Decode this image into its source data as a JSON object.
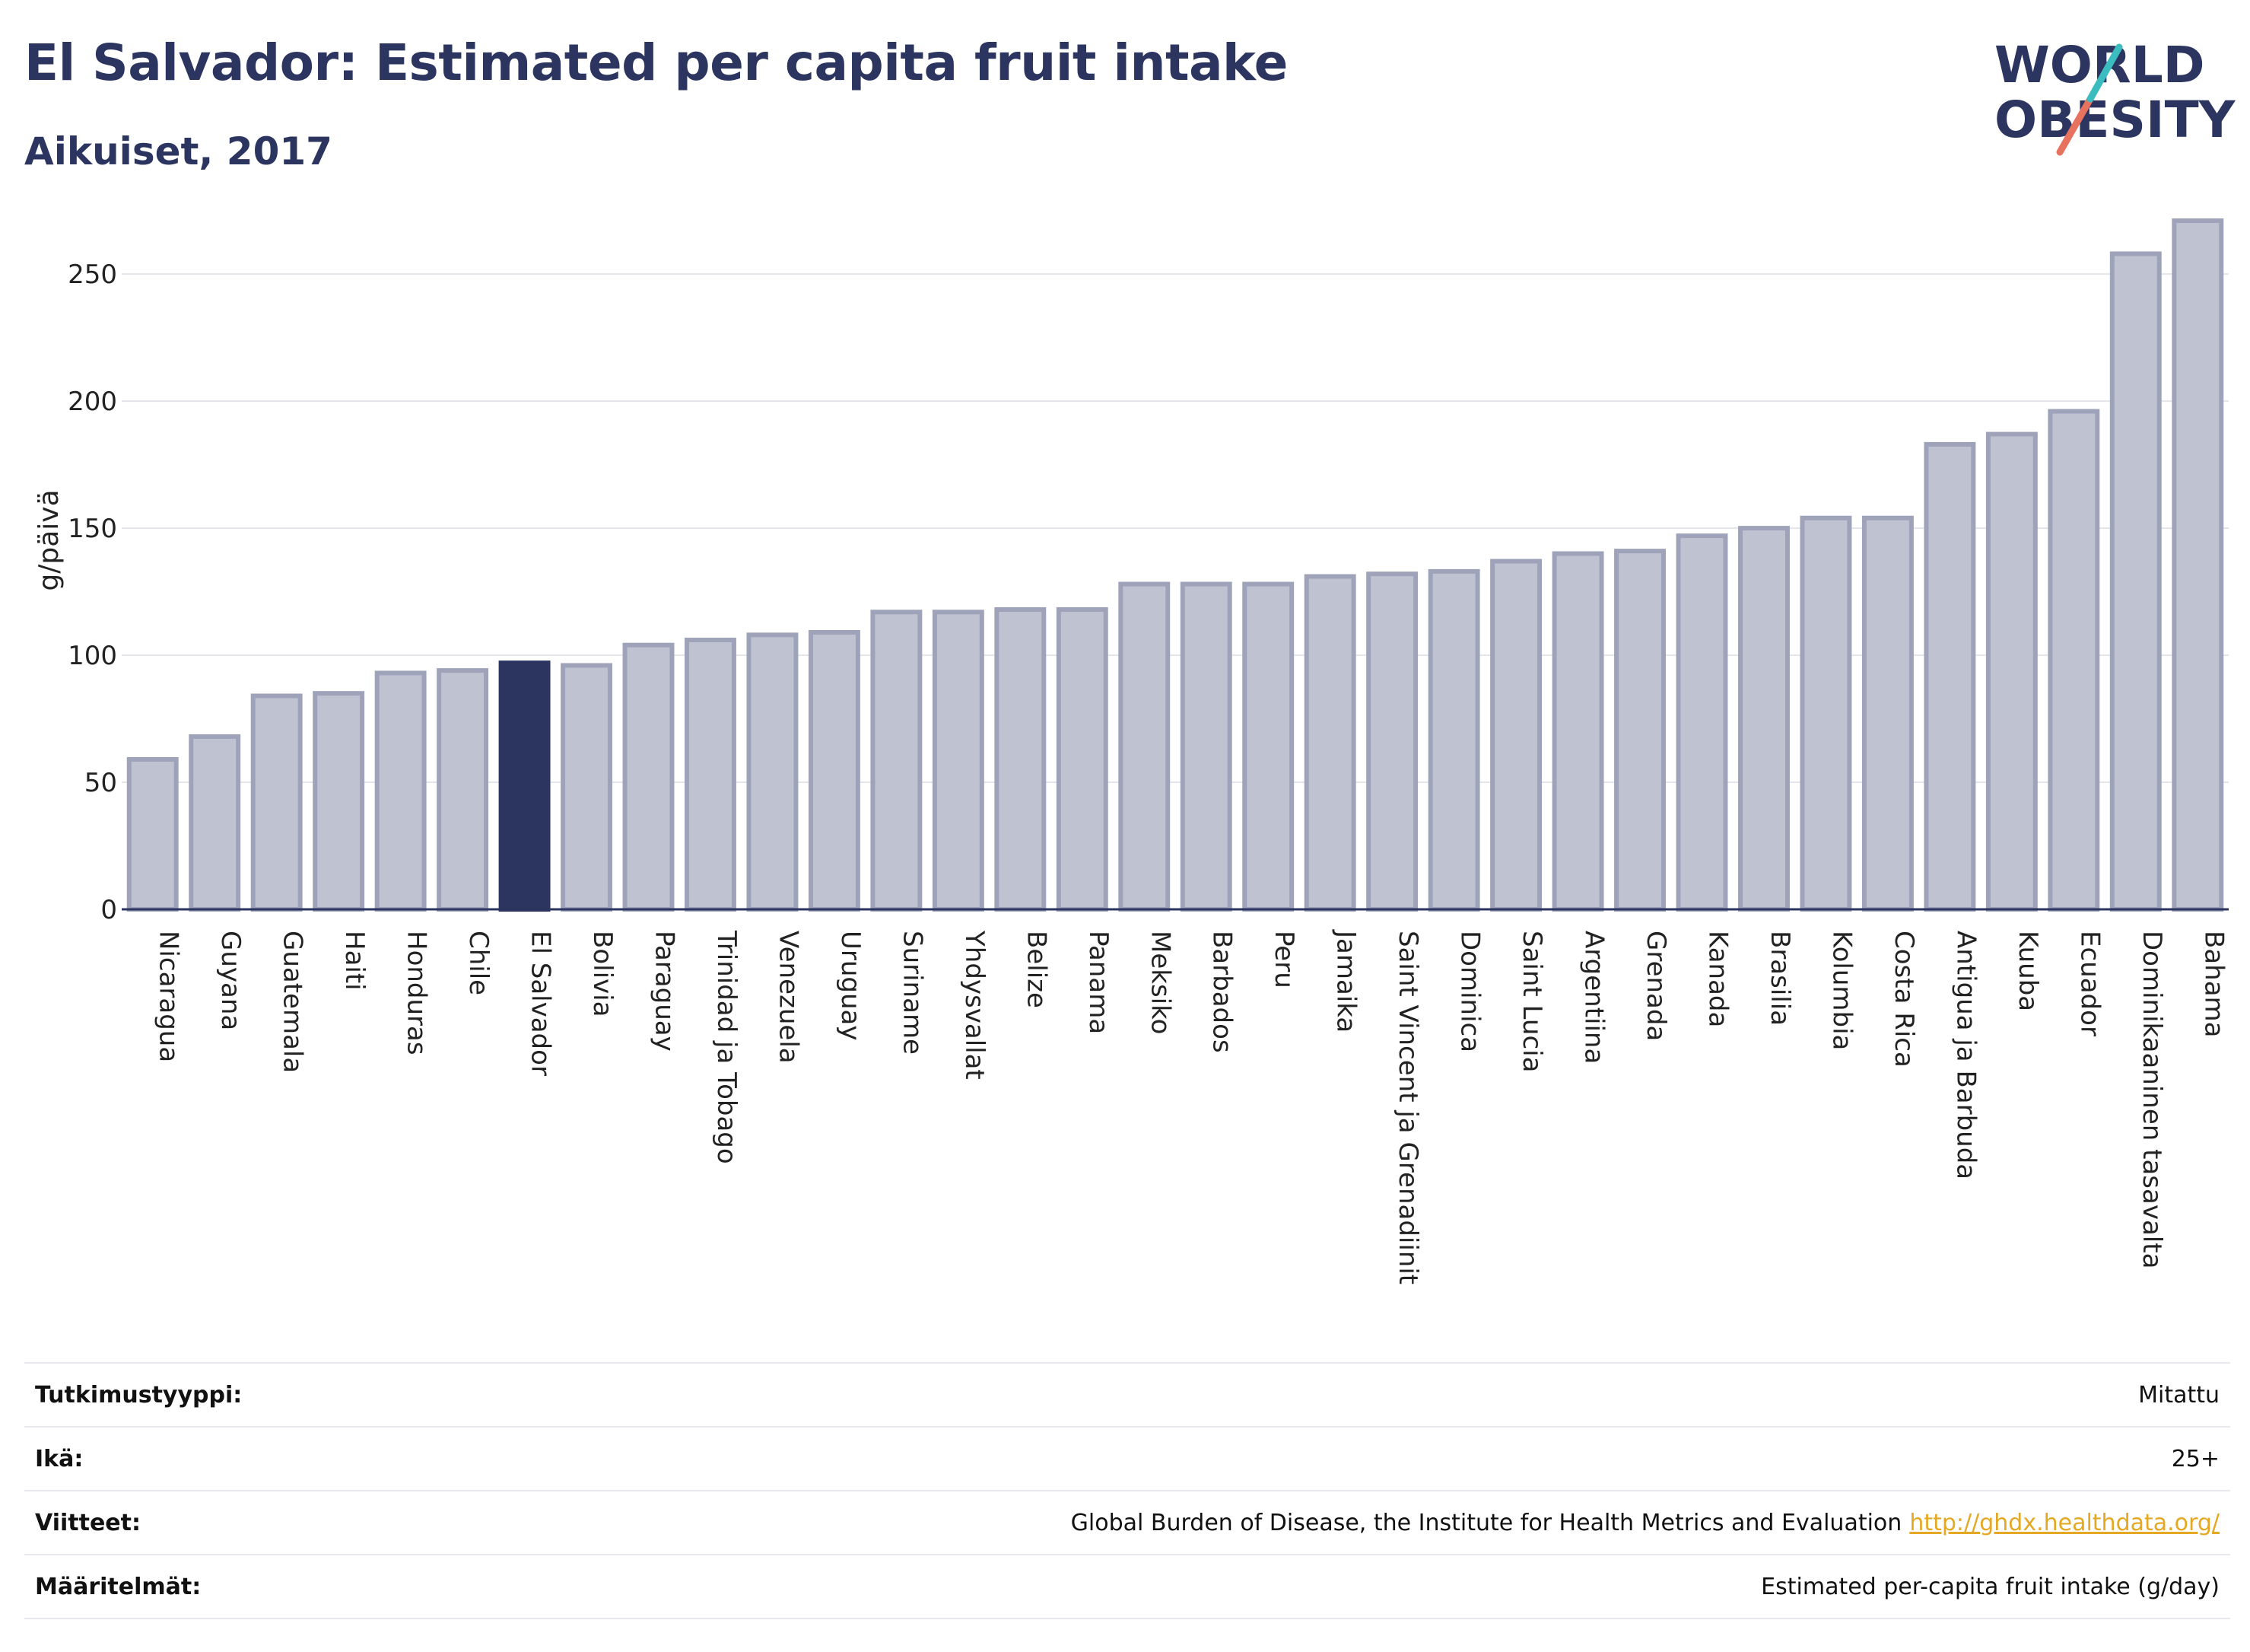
{
  "header": {
    "title": "El Salvador: Estimated per capita fruit intake",
    "subtitle": "Aikuiset, 2017"
  },
  "logo": {
    "line1": "WORLD",
    "line2": "OBESITY"
  },
  "colors": {
    "highlight": "#2b3560",
    "bar": "#bfc3d1",
    "bar_stroke": "#9ea3ba",
    "accent_teal": "#3bbdc0",
    "accent_coral": "#e7735f"
  },
  "chart_data": {
    "type": "bar",
    "title": "El Salvador: Estimated per capita fruit intake",
    "subtitle": "Aikuiset, 2017",
    "xlabel": "",
    "ylabel": "g/päivä",
    "ylim": [
      0,
      280
    ],
    "yticks": [
      0,
      50,
      100,
      150,
      200,
      250
    ],
    "grid": true,
    "highlight": "El Salvador",
    "categories": [
      "Nicaragua",
      "Guyana",
      "Guatemala",
      "Haiti",
      "Honduras",
      "Chile",
      "El Salvador",
      "Bolivia",
      "Paraguay",
      "Trinidad ja Tobago",
      "Venezuela",
      "Uruguay",
      "Suriname",
      "Yhdysvallat",
      "Belize",
      "Panama",
      "Meksiko",
      "Barbados",
      "Peru",
      "Jamaika",
      "Saint Vincent ja Grenadiinit",
      "Dominica",
      "Saint Lucia",
      "Argentiina",
      "Grenada",
      "Kanada",
      "Brasilia",
      "Kolumbia",
      "Costa Rica",
      "Antigua ja Barbuda",
      "Kuuba",
      "Ecuador",
      "Dominikaaninen tasavalta",
      "Bahama"
    ],
    "values": [
      59,
      68,
      84,
      85,
      93,
      94,
      97,
      96,
      104,
      106,
      108,
      109,
      117,
      117,
      118,
      118,
      128,
      128,
      128,
      131,
      132,
      133,
      137,
      140,
      141,
      147,
      150,
      154,
      154,
      183,
      187,
      196,
      258,
      271
    ]
  },
  "meta": [
    {
      "key": "Tutkimustyyppi:",
      "value": "Mitattu",
      "link": ""
    },
    {
      "key": "Ikä:",
      "value": "25+",
      "link": ""
    },
    {
      "key": "Viitteet:",
      "value": "Global Burden of Disease, the Institute for Health Metrics and Evaluation",
      "link": "http://ghdx.healthdata.org/"
    },
    {
      "key": "Määritelmät:",
      "value": "Estimated per-capita fruit intake (g/day)",
      "link": ""
    }
  ]
}
